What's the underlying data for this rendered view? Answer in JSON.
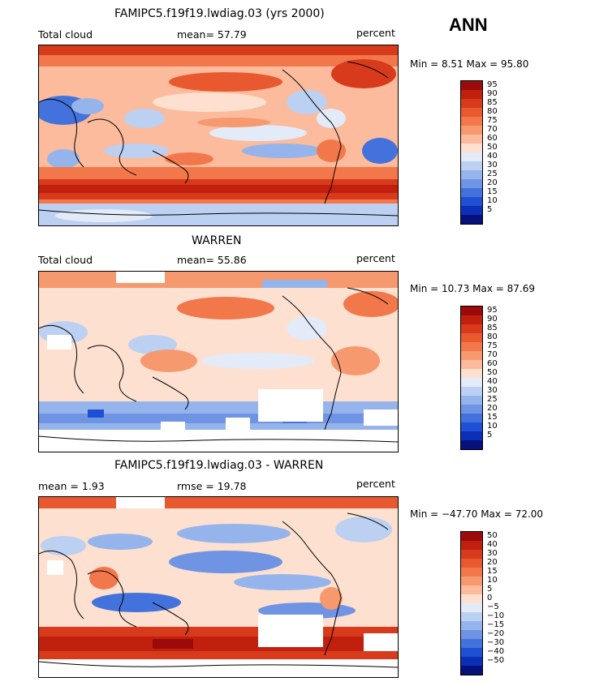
{
  "season": "ANN",
  "panels": [
    {
      "title": "FAMIPC5.f19f19.lwdiag.03 (yrs 2000)",
      "left_label": "Total cloud",
      "center_label": "mean=   57.79",
      "right_label": "percent",
      "minmax": "Min =    8.51 Max =   95.80"
    },
    {
      "title": "WARREN",
      "left_label": "Total cloud",
      "center_label": "mean=   55.86",
      "right_label": "percent",
      "minmax": "Min =   10.73 Max =   87.69"
    },
    {
      "title": "FAMIPC5.f19f19.lwdiag.03 - WARREN",
      "left_label": "mean =    1.93",
      "center_label": "rmse =   19.78",
      "right_label": "percent",
      "minmax": "Min = −47.70 Max =   72.00"
    }
  ],
  "colorbars": {
    "absolute": {
      "labels": [
        "95",
        "90",
        "85",
        "80",
        "75",
        "70",
        "60",
        "50",
        "40",
        "30",
        "25",
        "20",
        "15",
        "10",
        "5"
      ],
      "colors": [
        "#9c0b0b",
        "#c1200f",
        "#d83a1c",
        "#e9592f",
        "#f2784c",
        "#f7996e",
        "#fbbb9c",
        "#fde0cf",
        "#e3eaf8",
        "#bcd0f2",
        "#96b4ec",
        "#6f94e4",
        "#4472dc",
        "#1f4fd3",
        "#0c2fb8",
        "#06127a"
      ]
    },
    "difference": {
      "labels": [
        "50",
        "40",
        "30",
        "20",
        "15",
        "10",
        "5",
        "0",
        "−5",
        "−10",
        "−15",
        "−20",
        "−30",
        "−40",
        "−50"
      ],
      "colors": [
        "#9c0b0b",
        "#c1200f",
        "#d83a1c",
        "#e9592f",
        "#f2784c",
        "#f7996e",
        "#fbbb9c",
        "#fde0cf",
        "#e3eaf8",
        "#bcd0f2",
        "#96b4ec",
        "#6f94e4",
        "#4472dc",
        "#1f4fd3",
        "#0c2fb8",
        "#06127a"
      ]
    }
  }
}
